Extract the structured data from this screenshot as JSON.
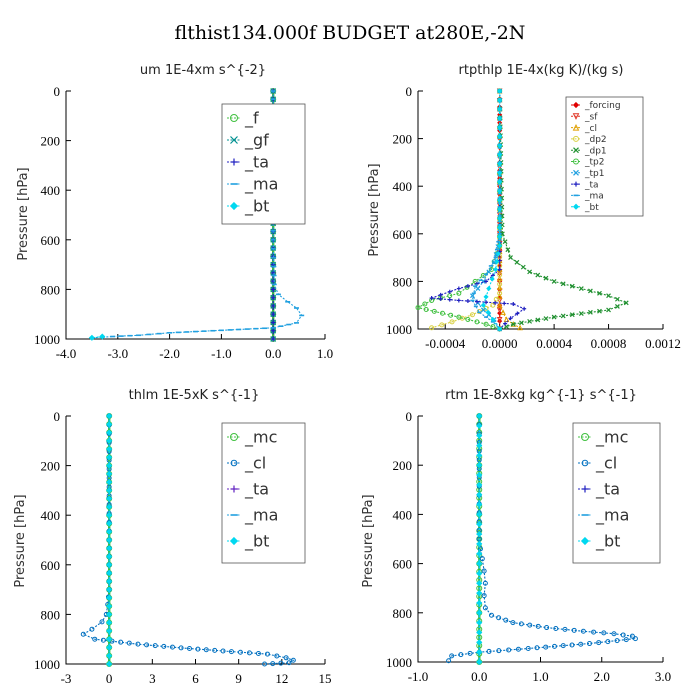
{
  "figure": {
    "title": "flthist134.000f  BUDGET at280E,-2N"
  },
  "chart_data": [
    {
      "type": "line",
      "title": "um   1E-4xm s^{-2}",
      "ylabel": "Pressure [hPa]",
      "xlim": [
        -4.0,
        1.0
      ],
      "ylim": [
        1000,
        0
      ],
      "xticks": [
        "-4.0",
        "-3.0",
        "-2.0",
        "-1.0",
        "0.0",
        "1.0"
      ],
      "yticks": [
        "0",
        "200",
        "400",
        "600",
        "800",
        "1000"
      ],
      "legend_position": "top-right",
      "legend_size": "large",
      "series": [
        {
          "name": "_f",
          "color": "#40c040",
          "marker": "circle",
          "x": [
            0,
            0,
            0,
            0,
            0,
            0,
            0,
            0,
            0,
            0,
            0
          ],
          "y": [
            0,
            100,
            200,
            300,
            400,
            500,
            600,
            700,
            800,
            900,
            1000
          ]
        },
        {
          "name": "_gf",
          "color": "#009090",
          "marker": "x",
          "x": [
            0,
            0,
            0,
            0,
            0,
            0,
            0,
            0,
            0,
            0,
            0
          ],
          "y": [
            0,
            100,
            200,
            300,
            400,
            500,
            600,
            700,
            800,
            900,
            1000
          ]
        },
        {
          "name": "_ta",
          "color": "#2020c0",
          "marker": "plus",
          "x": [
            0,
            0,
            0,
            0,
            0,
            0
          ],
          "y": [
            0,
            200,
            400,
            600,
            800,
            1000
          ]
        },
        {
          "name": "_ma",
          "color": "#20a0e0",
          "marker": "dash",
          "x": [
            0,
            0,
            0,
            0.02,
            0.1,
            0.28,
            0.45,
            0.55,
            0.45,
            0.0,
            -1.0,
            -2.0,
            -2.6,
            -3.1,
            -3.5
          ],
          "y": [
            0,
            200,
            600,
            780,
            820,
            850,
            875,
            905,
            935,
            955,
            965,
            975,
            985,
            990,
            995
          ]
        },
        {
          "name": "_bt",
          "color": "#00d8f0",
          "marker": "diamond",
          "x": [
            -3.3,
            -3.5
          ],
          "y": [
            990,
            995
          ]
        }
      ]
    },
    {
      "type": "line",
      "title": "rtpthlp   1E-4x(kg K)/(kg s)",
      "ylabel": "Pressure [hPa]",
      "xlim": [
        -0.0006,
        0.0012
      ],
      "ylim": [
        1000,
        0
      ],
      "xticks": [
        "-0.0004",
        "0.0000",
        "0.0004",
        "0.0008",
        "0.0012"
      ],
      "yticks": [
        "0",
        "200",
        "400",
        "600",
        "800",
        "1000"
      ],
      "legend_position": "top-right",
      "legend_size": "small",
      "series": [
        {
          "name": "_forcing",
          "color": "#e00000",
          "marker": "diamond",
          "x": [
            0,
            0,
            0,
            0,
            0,
            0,
            0,
            0,
            0,
            0,
            0
          ],
          "y": [
            0,
            100,
            200,
            300,
            400,
            500,
            600,
            700,
            800,
            900,
            1000
          ]
        },
        {
          "name": "_sf",
          "color": "#e03020",
          "marker": "triangle-down",
          "x": [
            0,
            0,
            0,
            0,
            0,
            0
          ],
          "y": [
            0,
            200,
            400,
            600,
            800,
            1000
          ]
        },
        {
          "name": "_cl",
          "color": "#e0a000",
          "marker": "triangle",
          "x": [
            0,
            0,
            5e-05,
            0.0001,
            0.00015
          ],
          "y": [
            0,
            900,
            960,
            980,
            995
          ]
        },
        {
          "name": "_dp2",
          "color": "#d8d040",
          "marker": "circle",
          "x": [
            0,
            0,
            -5e-05,
            -0.0002,
            -0.00035,
            -0.0005
          ],
          "y": [
            0,
            850,
            900,
            940,
            970,
            995
          ]
        },
        {
          "name": "_dp1",
          "color": "#209030",
          "marker": "x",
          "x": [
            0,
            2e-05,
            8e-05,
            0.00022,
            0.0004,
            0.0006,
            0.0008,
            0.00093,
            0.0008,
            0.0004,
            0.0001,
            0.0
          ],
          "y": [
            0,
            600,
            700,
            760,
            800,
            830,
            860,
            890,
            920,
            950,
            980,
            1000
          ]
        },
        {
          "name": "_tp2",
          "color": "#40c040",
          "marker": "circle",
          "x": [
            0,
            0,
            -6e-05,
            -0.00018,
            -0.0003,
            -0.0005,
            -0.0006,
            -0.0003,
            -0.0001,
            0
          ],
          "y": [
            0,
            650,
            750,
            800,
            850,
            880,
            910,
            950,
            980,
            1000
          ]
        },
        {
          "name": "_tp1",
          "color": "#20a0e0",
          "marker": "x",
          "x": [
            0,
            0,
            -4e-05,
            -0.00012,
            -0.0002,
            -0.00012,
            -4e-05,
            0
          ],
          "y": [
            0,
            620,
            720,
            800,
            860,
            920,
            960,
            1000
          ]
        },
        {
          "name": "_ta",
          "color": "#2020c0",
          "marker": "plus",
          "x": [
            0,
            0,
            -0.0001,
            -0.0003,
            -0.0005,
            -0.0003,
            0.0001,
            0.00018,
            8e-05,
            0
          ],
          "y": [
            0,
            750,
            800,
            830,
            870,
            880,
            895,
            915,
            955,
            1000
          ]
        },
        {
          "name": "_ma",
          "color": "#20a0e0",
          "marker": "dash",
          "x": [
            0,
            0,
            -3e-05,
            -0.0001,
            -0.00018,
            -0.0002,
            -0.00015,
            -5e-05,
            0
          ],
          "y": [
            0,
            600,
            700,
            770,
            820,
            880,
            930,
            970,
            1000
          ]
        },
        {
          "name": "_bt",
          "color": "#00d8f0",
          "marker": "diamond",
          "x": [
            0,
            0,
            -3e-05,
            -8e-05,
            -0.00012,
            -5e-05,
            0
          ],
          "y": [
            0,
            650,
            750,
            830,
            900,
            960,
            1000
          ]
        }
      ]
    },
    {
      "type": "line",
      "title": "thlm   1E-5xK s^{-1}",
      "ylabel": "Pressure [hPa]",
      "xlim": [
        -3,
        15
      ],
      "ylim": [
        1000,
        0
      ],
      "xticks": [
        "-3",
        "0",
        "3",
        "6",
        "9",
        "12",
        "15"
      ],
      "yticks": [
        "0",
        "200",
        "400",
        "600",
        "800",
        "1000"
      ],
      "legend_position": "top-right",
      "legend_size": "large",
      "series": [
        {
          "name": "_mc",
          "color": "#40c040",
          "marker": "circle",
          "x": [
            0,
            0,
            0,
            0,
            0,
            0,
            0,
            0,
            0,
            0,
            0
          ],
          "y": [
            0,
            100,
            200,
            300,
            400,
            500,
            600,
            700,
            800,
            900,
            1000
          ]
        },
        {
          "name": "_cl",
          "color": "#0070c0",
          "marker": "circle-small",
          "x": [
            0,
            0,
            0,
            -0.1,
            -0.2,
            -0.5,
            -1.2,
            -1.8,
            -1.0,
            2.0,
            5.0,
            8.5,
            11.0,
            12.3,
            12.8,
            12.5,
            10.8
          ],
          "y": [
            0,
            500,
            700,
            760,
            800,
            830,
            860,
            880,
            900,
            920,
            935,
            950,
            960,
            975,
            985,
            995,
            1000
          ]
        },
        {
          "name": "_ta",
          "color": "#6020c0",
          "marker": "plus",
          "x": [
            0,
            0,
            0,
            0,
            0,
            0
          ],
          "y": [
            0,
            200,
            400,
            600,
            800,
            1000
          ]
        },
        {
          "name": "_ma",
          "color": "#20a0e0",
          "marker": "dash",
          "x": [
            0,
            0,
            0,
            0,
            0,
            0
          ],
          "y": [
            0,
            200,
            400,
            600,
            800,
            1000
          ]
        },
        {
          "name": "_bt",
          "color": "#00d8f0",
          "marker": "diamond",
          "x": [
            0,
            0,
            0,
            0,
            0,
            0
          ],
          "y": [
            0,
            200,
            400,
            600,
            800,
            1000
          ]
        }
      ]
    },
    {
      "type": "line",
      "title": "rtm   1E-8xkg kg^{-1} s^{-1}",
      "ylabel": "Pressure [hPa]",
      "xlim": [
        -1.0,
        3.0
      ],
      "ylim": [
        1000,
        0
      ],
      "xticks": [
        "-1.0",
        "0.0",
        "1.0",
        "2.0",
        "3.0"
      ],
      "yticks": [
        "0",
        "200",
        "400",
        "600",
        "800",
        "1000"
      ],
      "legend_position": "top-right",
      "legend_size": "large",
      "series": [
        {
          "name": "_mc",
          "color": "#40c040",
          "marker": "circle",
          "x": [
            0,
            0,
            0,
            0,
            0,
            0,
            0,
            0,
            0,
            0,
            0
          ],
          "y": [
            0,
            100,
            200,
            300,
            400,
            500,
            600,
            700,
            800,
            900,
            1000
          ]
        },
        {
          "name": "_cl",
          "color": "#0070c0",
          "marker": "circle-small",
          "x": [
            0,
            0,
            0.02,
            0.05,
            0.08,
            0.1,
            0.08,
            0.1,
            0.2,
            0.55,
            1.1,
            1.7,
            2.2,
            2.5,
            2.55,
            1.8,
            0.8,
            0.0,
            -0.45,
            -0.5
          ],
          "y": [
            0,
            500,
            540,
            580,
            630,
            680,
            730,
            780,
            810,
            840,
            860,
            875,
            885,
            895,
            905,
            925,
            945,
            960,
            975,
            995
          ]
        },
        {
          "name": "_ta",
          "color": "#2020c0",
          "marker": "plus",
          "x": [
            0,
            0,
            0,
            0,
            0,
            0
          ],
          "y": [
            0,
            200,
            400,
            600,
            800,
            1000
          ]
        },
        {
          "name": "_ma",
          "color": "#20a0e0",
          "marker": "dash",
          "x": [
            0,
            0,
            0,
            0,
            0,
            0
          ],
          "y": [
            0,
            200,
            400,
            600,
            800,
            1000
          ]
        },
        {
          "name": "_bt",
          "color": "#00d8f0",
          "marker": "diamond",
          "x": [
            0,
            0,
            0,
            0,
            0,
            0
          ],
          "y": [
            0,
            200,
            400,
            600,
            800,
            1000
          ]
        }
      ]
    }
  ]
}
